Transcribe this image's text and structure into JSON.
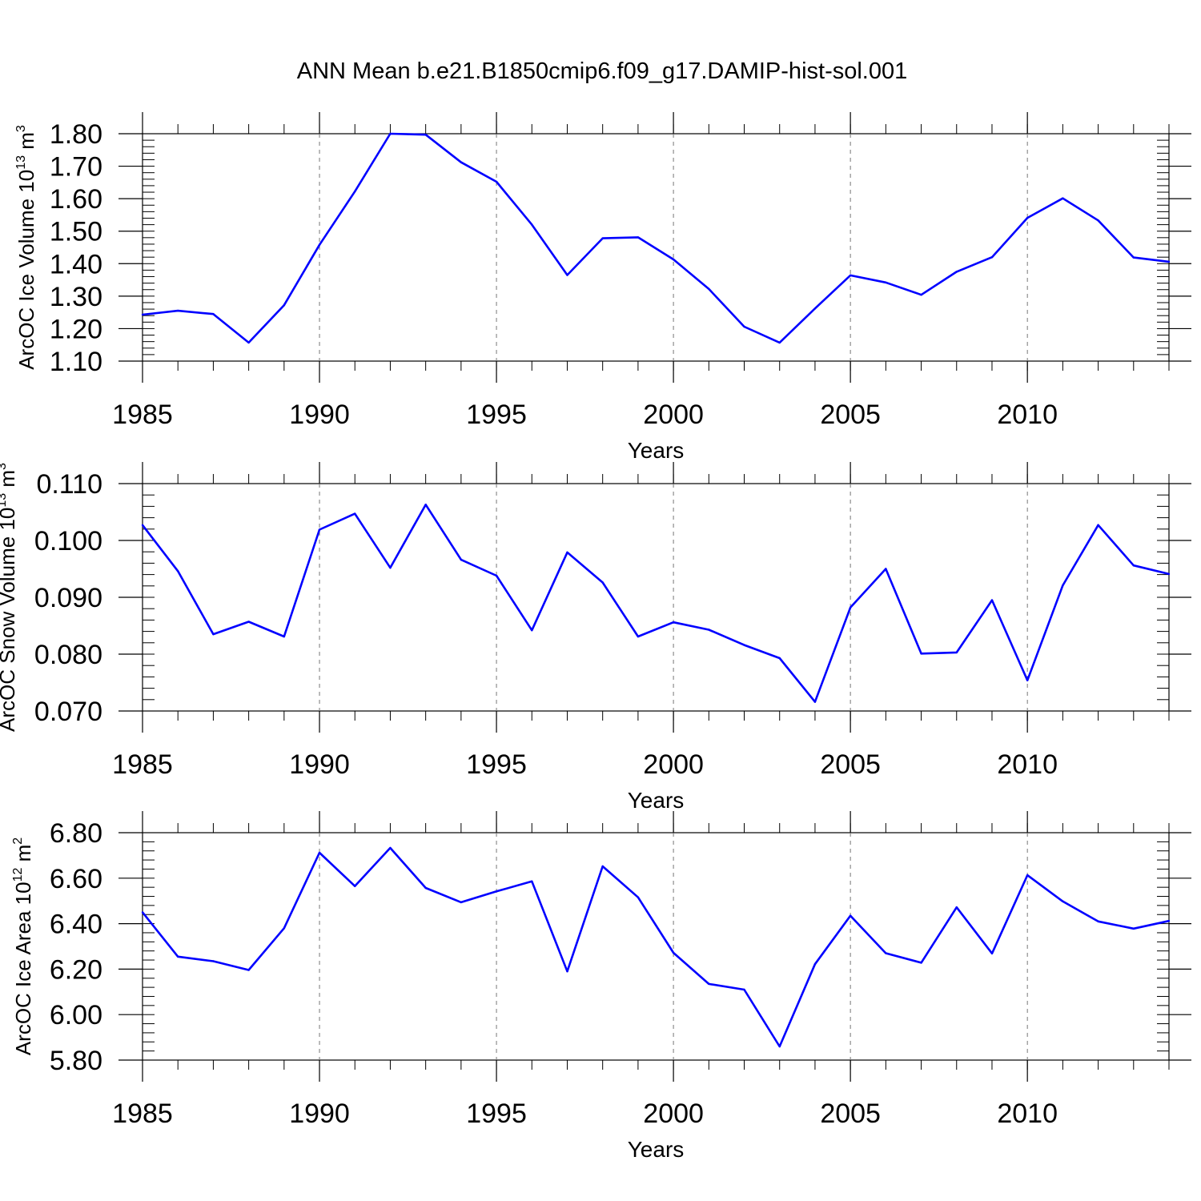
{
  "title": "ANN Mean b.e21.B1850cmip6.f09_g17.DAMIP-hist-sol.001",
  "colors": {
    "series": "#0000ff",
    "axes": "#000000",
    "grid": "#777777",
    "background": "#ffffff"
  },
  "chart_data": [
    {
      "type": "line",
      "ylabel": {
        "main": "ArcOC Ice Volume 10",
        "exp": "13",
        "unit": " m",
        "unit_exp": "3"
      },
      "xlabel": "Years",
      "xlim": [
        1985,
        2014
      ],
      "ylim": [
        1.1,
        1.8
      ],
      "yticks": [
        "1.10",
        "1.20",
        "1.30",
        "1.40",
        "1.50",
        "1.60",
        "1.70",
        "1.80"
      ],
      "xticks": [
        "1985",
        "1990",
        "1995",
        "2000",
        "2005",
        "2010"
      ],
      "x": [
        1985,
        1986,
        1987,
        1988,
        1989,
        1990,
        1991,
        1992,
        1993,
        1994,
        1995,
        1996,
        1997,
        1998,
        1999,
        2000,
        2001,
        2002,
        2003,
        2004,
        2005,
        2006,
        2007,
        2008,
        2009,
        2010,
        2011,
        2012,
        2013,
        2014
      ],
      "values": [
        1.243,
        1.255,
        1.245,
        1.157,
        1.272,
        1.458,
        1.622,
        1.8,
        1.797,
        1.712,
        1.652,
        1.52,
        1.365,
        1.478,
        1.481,
        1.413,
        1.322,
        1.206,
        1.157,
        1.262,
        1.364,
        1.342,
        1.304,
        1.375,
        1.42,
        1.541,
        1.601,
        1.533,
        1.419,
        1.406
      ]
    },
    {
      "type": "line",
      "ylabel": {
        "main": "ArcOC Snow Volume 10",
        "exp": "13",
        "unit": " m",
        "unit_exp": "3"
      },
      "xlabel": "Years",
      "xlim": [
        1985,
        2014
      ],
      "ylim": [
        0.07,
        0.11
      ],
      "yticks": [
        "0.070",
        "0.080",
        "0.090",
        "0.100",
        "0.110"
      ],
      "xticks": [
        "1985",
        "1990",
        "1995",
        "2000",
        "2005",
        "2010"
      ],
      "x": [
        1985,
        1986,
        1987,
        1988,
        1989,
        1990,
        1991,
        1992,
        1993,
        1994,
        1995,
        1996,
        1997,
        1998,
        1999,
        2000,
        2001,
        2002,
        2003,
        2004,
        2005,
        2006,
        2007,
        2008,
        2009,
        2010,
        2011,
        2012,
        2013,
        2014
      ],
      "values": [
        0.1027,
        0.0946,
        0.0835,
        0.0857,
        0.0831,
        0.1019,
        0.1047,
        0.0952,
        0.1063,
        0.0966,
        0.0938,
        0.0842,
        0.0979,
        0.0926,
        0.0831,
        0.0856,
        0.0843,
        0.0816,
        0.0793,
        0.0716,
        0.0882,
        0.095,
        0.0801,
        0.0803,
        0.0895,
        0.0754,
        0.0921,
        0.1027,
        0.0956,
        0.0941
      ]
    },
    {
      "type": "line",
      "ylabel": {
        "main": "ArcOC Ice Area 10",
        "exp": "12",
        "unit": " m",
        "unit_exp": "2"
      },
      "xlabel": "Years",
      "xlim": [
        1985,
        2014
      ],
      "ylim": [
        5.8,
        6.8
      ],
      "yticks": [
        "5.80",
        "6.00",
        "6.20",
        "6.40",
        "6.60",
        "6.80"
      ],
      "xticks": [
        "1985",
        "1990",
        "1995",
        "2000",
        "2005",
        "2010"
      ],
      "x": [
        1985,
        1986,
        1987,
        1988,
        1989,
        1990,
        1991,
        1992,
        1993,
        1994,
        1995,
        1996,
        1997,
        1998,
        1999,
        2000,
        2001,
        2002,
        2003,
        2004,
        2005,
        2006,
        2007,
        2008,
        2009,
        2010,
        2011,
        2012,
        2013,
        2014
      ],
      "values": [
        6.45,
        6.255,
        6.235,
        6.196,
        6.38,
        6.712,
        6.565,
        6.733,
        6.557,
        6.494,
        6.542,
        6.586,
        6.19,
        6.652,
        6.516,
        6.272,
        6.135,
        6.11,
        5.86,
        6.222,
        6.435,
        6.27,
        6.228,
        6.472,
        6.269,
        6.613,
        6.498,
        6.41,
        6.378,
        6.412
      ]
    }
  ]
}
